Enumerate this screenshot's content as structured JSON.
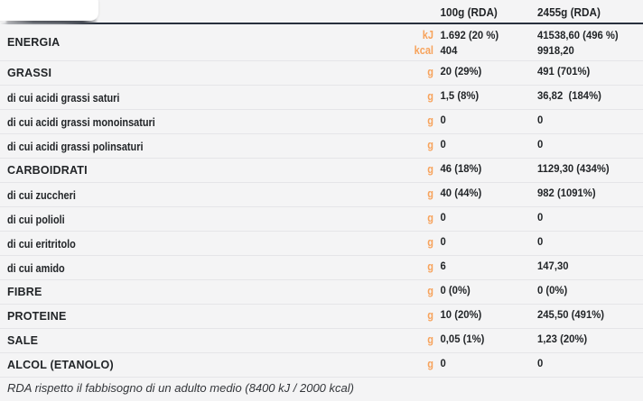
{
  "colors": {
    "accent_orange": "#F7A35C",
    "header_line": "#28303E",
    "text_dark": "#222528",
    "background": "#F4F4F5",
    "separator": "#E5E5E8"
  },
  "table": {
    "header": {
      "col_100g": "100g (RDA)",
      "col_2455g": "2455g (RDA)"
    },
    "energy": {
      "label": "ENERGIA",
      "unit_kj": "kJ",
      "unit_kcal": "kcal",
      "kj_100": "1.692 (20 %)",
      "kcal_100": "404",
      "kj_2455": "41538,60 (496 %)",
      "kcal_2455": "9918,20"
    },
    "rows": [
      {
        "label": "GRASSI",
        "unit": "g",
        "v100": "20 (29%)",
        "v2455": "491 (701%)"
      },
      {
        "label": "di cui acidi grassi saturi",
        "unit": "g",
        "v100": "1,5 (8%)",
        "v2455": "36,82  (184%)"
      },
      {
        "label": "di cui acidi grassi monoinsaturi",
        "unit": "g",
        "v100": "0",
        "v2455": "0"
      },
      {
        "label": "di cui acidi grassi polinsaturi",
        "unit": "g",
        "v100": "0",
        "v2455": "0"
      },
      {
        "label": "CARBOIDRATI",
        "unit": "g",
        "v100": "46 (18%)",
        "v2455": "1129,30 (434%)"
      },
      {
        "label": "di cui zuccheri",
        "unit": "g",
        "v100": "40 (44%)",
        "v2455": "982 (1091%)"
      },
      {
        "label": "di cui polioli",
        "unit": "g",
        "v100": "0",
        "v2455": "0"
      },
      {
        "label": "di cui eritritolo",
        "unit": "g",
        "v100": "0",
        "v2455": "0"
      },
      {
        "label": "di cui amido",
        "unit": "g",
        "v100": "6",
        "v2455": "147,30"
      },
      {
        "label": "FIBRE",
        "unit": "g",
        "v100": "0 (0%)",
        "v2455": "0 (0%)"
      },
      {
        "label": "PROTEINE",
        "unit": "g",
        "v100": "10 (20%)",
        "v2455": "245,50 (491%)"
      },
      {
        "label": "SALE",
        "unit": "g",
        "v100": "0,05 (1%)",
        "v2455": "1,23 (20%)"
      },
      {
        "label": "ALCOL (ETANOLO)",
        "unit": "g",
        "v100": "0",
        "v2455": "0"
      }
    ]
  },
  "footer": {
    "note": "RDA rispetto il fabbisogno di un adulto medio (8400 kJ / 2000 kcal)"
  }
}
